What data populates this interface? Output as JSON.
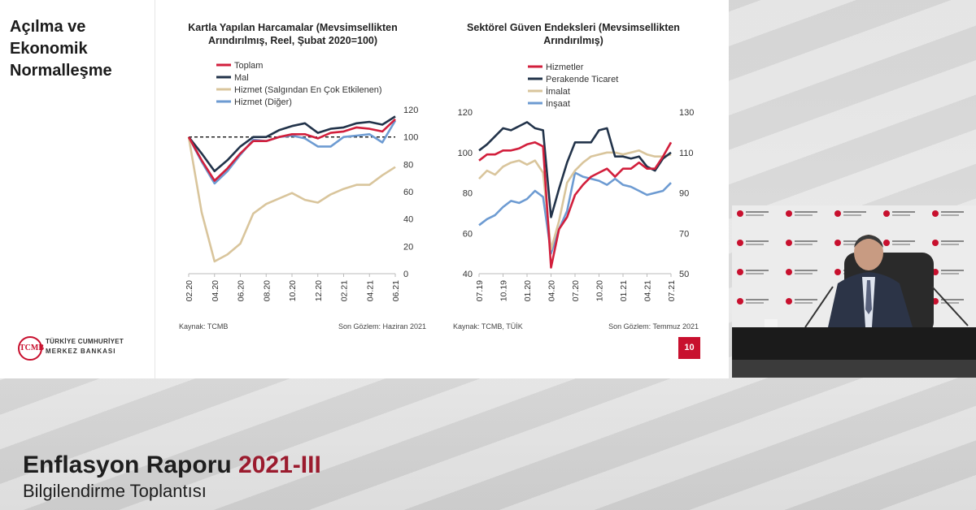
{
  "slide": {
    "title": "Açılma ve Ekonomik Normalleşme",
    "page_number": "10",
    "logo": {
      "line1": "TÜRKİYE CUMHURİYET",
      "line2": "MERKEZ BANKASI",
      "mark": "TCMB"
    }
  },
  "banner": {
    "title_main": "Enflasyon Raporu",
    "title_highlight": "2021-III",
    "subtitle": "Bilgilendirme Toplantısı"
  },
  "colors": {
    "red": "#d21f3c",
    "navy": "#22334a",
    "tan": "#d9c59c",
    "blue": "#6d9bd2",
    "accent": "#c8102e"
  },
  "chart_data": [
    {
      "type": "line",
      "title_line1": "Kartla Yapılan Harcamalar (Mevsimsellikten",
      "title_line2": "Arındırılmış, Reel, Şubat 2020=100)",
      "source": "Kaynak: TCMB",
      "last_obs": "Son Gözlem: Haziran 2021",
      "x": [
        "02.20",
        "03.20",
        "04.20",
        "05.20",
        "06.20",
        "07.20",
        "08.20",
        "09.20",
        "10.20",
        "11.20",
        "12.20",
        "01.21",
        "02.21",
        "03.21",
        "04.21",
        "05.21",
        "06.21"
      ],
      "x_tick_labels": [
        "02.20",
        "04.20",
        "06.20",
        "08.20",
        "10.20",
        "12.20",
        "02.21",
        "04.21",
        "06.21"
      ],
      "y_axis_side": "right",
      "ylim": [
        0,
        120
      ],
      "y_ticks": [
        "0",
        "20",
        "40",
        "60",
        "80",
        "100",
        "120"
      ],
      "reference_line": 100,
      "legend_position": "top-left",
      "series": [
        {
          "name": "Toplam",
          "color": "#d21f3c",
          "values": [
            100,
            83,
            68,
            77,
            88,
            97,
            97,
            100,
            102,
            102,
            99,
            103,
            104,
            107,
            106,
            104,
            113
          ]
        },
        {
          "name": "Mal",
          "color": "#22334a",
          "values": [
            100,
            88,
            75,
            83,
            93,
            100,
            100,
            105,
            108,
            110,
            103,
            106,
            107,
            110,
            111,
            109,
            115
          ]
        },
        {
          "name": "Hizmet (Salgından En Çok Etkilenen)",
          "color": "#d9c59c",
          "values": [
            100,
            45,
            9,
            14,
            22,
            44,
            51,
            55,
            59,
            54,
            52,
            58,
            62,
            65,
            65,
            72,
            78
          ]
        },
        {
          "name": "Hizmet (Diğer)",
          "color": "#6d9bd2",
          "values": [
            100,
            82,
            66,
            75,
            87,
            98,
            97,
            100,
            101,
            99,
            93,
            93,
            100,
            101,
            102,
            96,
            112
          ]
        }
      ]
    },
    {
      "type": "line",
      "title_line1": "Sektörel Güven Endeksleri (Mevsimsellikten",
      "title_line2": "Arındırılmış)",
      "source": "Kaynak: TCMB, TÜİK",
      "last_obs": "Son Gözlem: Temmuz 2021",
      "x": [
        "07.19",
        "08.19",
        "09.19",
        "10.19",
        "11.19",
        "12.19",
        "01.20",
        "02.20",
        "03.20",
        "04.20",
        "05.20",
        "06.20",
        "07.20",
        "08.20",
        "09.20",
        "10.20",
        "11.20",
        "12.20",
        "01.21",
        "02.21",
        "03.21",
        "04.21",
        "05.21",
        "06.21",
        "07.21"
      ],
      "x_tick_labels": [
        "07.19",
        "10.19",
        "01.20",
        "04.20",
        "07.20",
        "10.20",
        "01.21",
        "04.21",
        "07.21"
      ],
      "left_axis": {
        "ylim": [
          40,
          120
        ],
        "y_ticks": [
          "40",
          "60",
          "80",
          "100",
          "120"
        ]
      },
      "right_axis": {
        "ylim": [
          50,
          130
        ],
        "y_ticks": [
          "50",
          "70",
          "90",
          "110",
          "130"
        ]
      },
      "legend_position": "top-left",
      "series": [
        {
          "name": "Hizmetler",
          "color": "#d21f3c",
          "axis": "left",
          "values": [
            96,
            99,
            99,
            101,
            101,
            102,
            104,
            105,
            103,
            43,
            62,
            68,
            79,
            84,
            88,
            90,
            92,
            88,
            92,
            92,
            95,
            92,
            92,
            98,
            105
          ]
        },
        {
          "name": "Perakende Ticaret",
          "color": "#22334a",
          "axis": "left",
          "values": [
            101,
            104,
            108,
            112,
            111,
            113,
            115,
            112,
            111,
            68,
            82,
            95,
            105,
            105,
            105,
            111,
            112,
            98,
            98,
            97,
            98,
            93,
            91,
            97,
            100
          ]
        },
        {
          "name": "İmalat",
          "color": "#d9c59c",
          "axis": "right",
          "values": [
            97,
            101,
            99,
            103,
            105,
            106,
            104,
            106,
            100,
            62,
            76,
            95,
            101,
            105,
            108,
            109,
            110,
            110,
            109,
            110,
            111,
            109,
            108,
            108,
            109
          ]
        },
        {
          "name": "İnşaat",
          "color": "#6d9bd2",
          "axis": "right",
          "values": [
            74,
            77,
            79,
            83,
            86,
            85,
            87,
            91,
            88,
            60,
            72,
            81,
            100,
            98,
            97,
            96,
            94,
            97,
            94,
            93,
            91,
            89,
            90,
            91,
            95
          ]
        }
      ]
    }
  ]
}
